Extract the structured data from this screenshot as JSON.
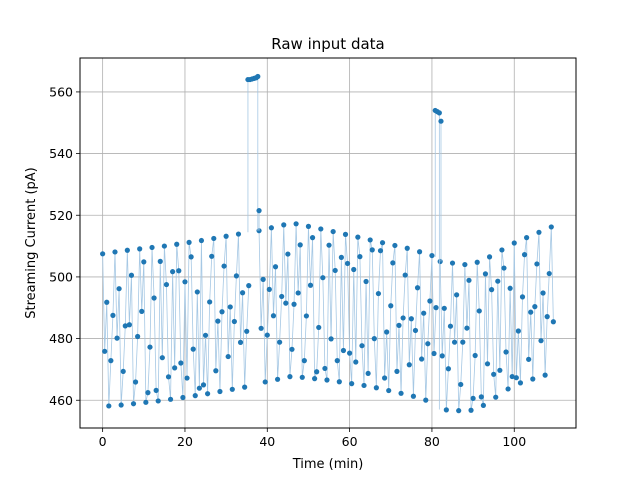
{
  "chart_data": {
    "type": "scatter",
    "title": "Raw input data",
    "xlabel": "Time (min)",
    "ylabel": "Streaming Current (pA)",
    "xlim": [
      -5.5,
      115
    ],
    "ylim": [
      451,
      571
    ],
    "xticks": [
      0,
      20,
      40,
      60,
      80,
      100
    ],
    "yticks": [
      460,
      480,
      500,
      520,
      540,
      560
    ],
    "grid": true,
    "marker_color": "#1f77b4",
    "line_color": "#a6c8e4",
    "segments": [
      {
        "t0": 0,
        "t1": 35.5,
        "upper": [
          [
            0,
            507.5
          ],
          [
            5,
            508.5
          ],
          [
            15,
            510
          ],
          [
            25,
            512
          ],
          [
            35.5,
            514.5
          ]
        ],
        "lower": [
          [
            0,
            458
          ],
          [
            5,
            458.5
          ],
          [
            15,
            460
          ],
          [
            25,
            462
          ],
          [
            35.5,
            464.5
          ]
        ]
      },
      {
        "t0": 38,
        "t1": 81,
        "upper": [
          [
            38,
            515
          ],
          [
            46,
            517.5
          ],
          [
            55,
            515
          ],
          [
            65,
            512
          ],
          [
            75,
            509
          ],
          [
            81,
            506.5
          ]
        ],
        "lower": [
          [
            38,
            465.5
          ],
          [
            46,
            467.8
          ],
          [
            55,
            466.5
          ],
          [
            65,
            464.5
          ],
          [
            75,
            461.5
          ],
          [
            81,
            459
          ]
        ]
      },
      {
        "t0": 82,
        "t1": 109.5,
        "upper": [
          [
            82,
            505
          ],
          [
            88,
            504
          ],
          [
            92,
            505
          ],
          [
            100,
            511
          ],
          [
            109.5,
            516.5
          ]
        ],
        "lower": [
          [
            82,
            457
          ],
          [
            88,
            456.5
          ],
          [
            91,
            457
          ],
          [
            100,
            465
          ],
          [
            109.5,
            469
          ]
        ]
      }
    ],
    "outliers": [
      {
        "x": 35.3,
        "y": 564
      },
      {
        "x": 35.8,
        "y": 564
      },
      {
        "x": 36.3,
        "y": 564.2
      },
      {
        "x": 36.8,
        "y": 564.4
      },
      {
        "x": 37.3,
        "y": 564.6
      },
      {
        "x": 37.7,
        "y": 565
      },
      {
        "x": 38.0,
        "y": 521.5
      },
      {
        "x": 80.8,
        "y": 554
      },
      {
        "x": 81.3,
        "y": 553.6
      },
      {
        "x": 81.8,
        "y": 553.2
      },
      {
        "x": 82.2,
        "y": 550.5
      }
    ]
  }
}
